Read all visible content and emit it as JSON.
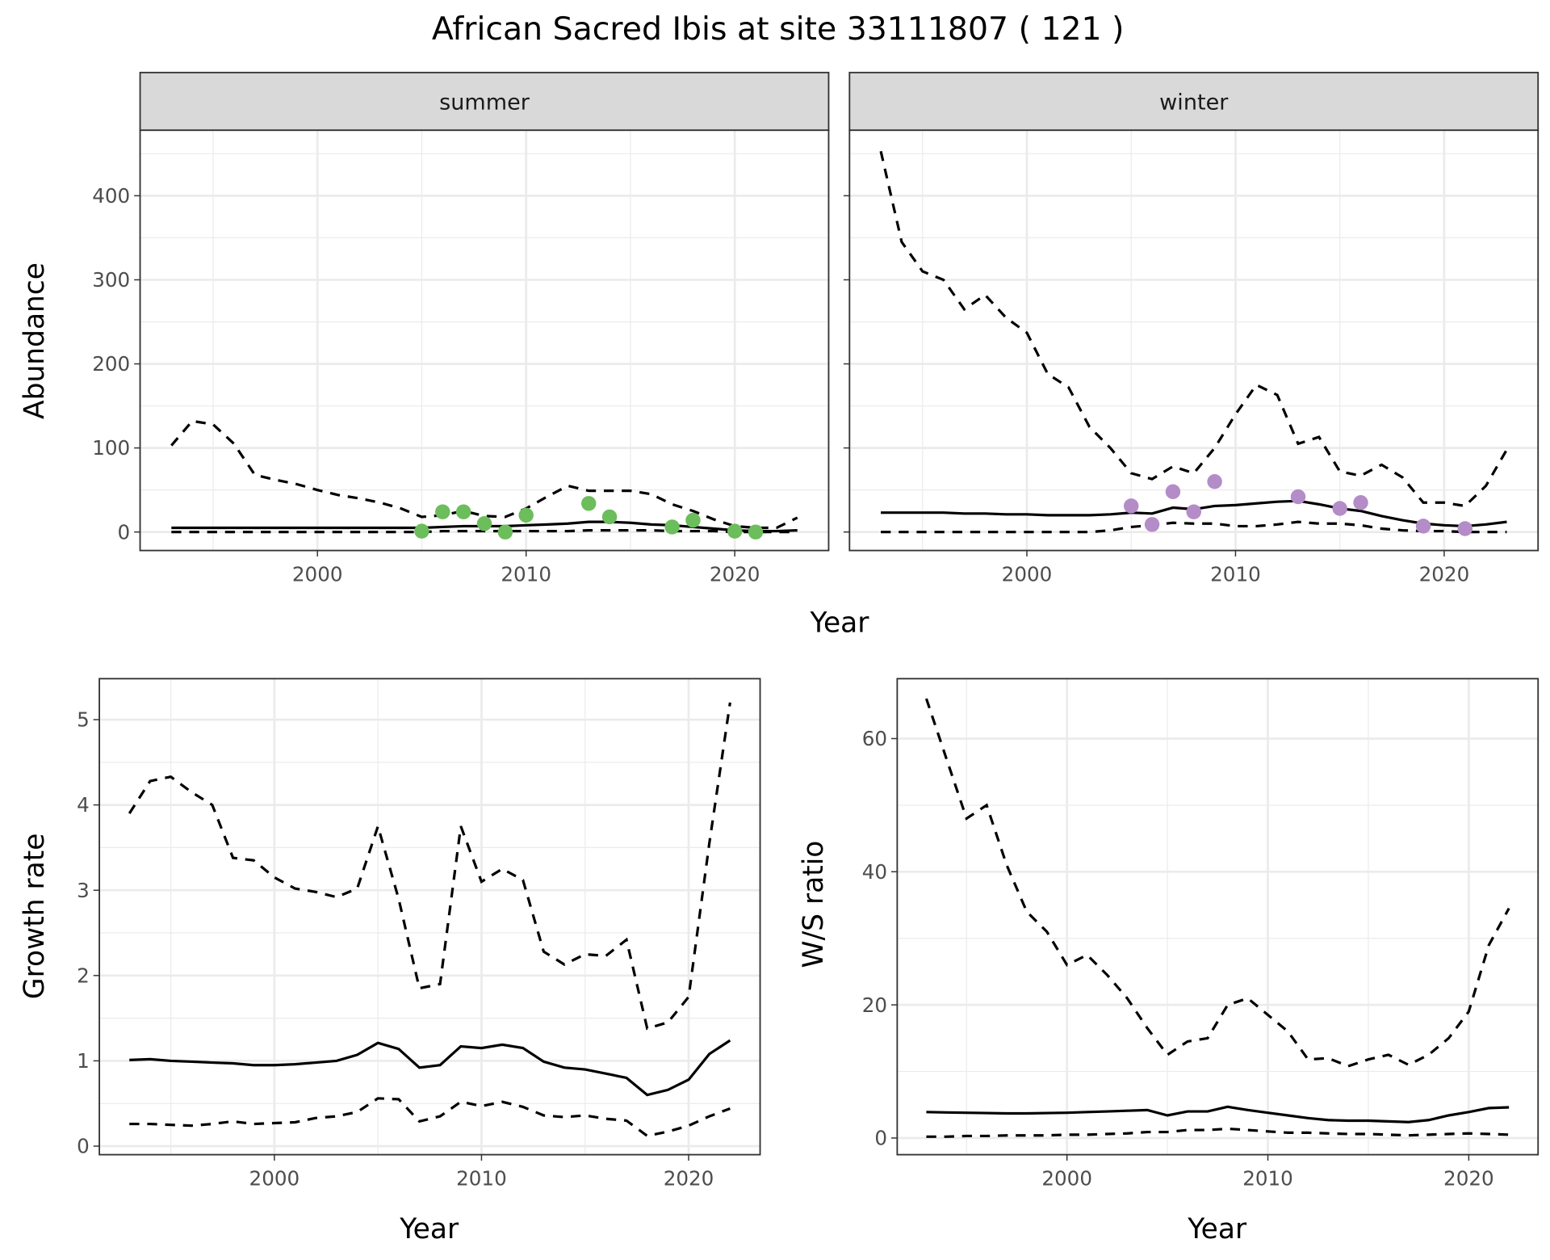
{
  "title": "African Sacred Ibis at site 33111807 ( 121 )",
  "colors": {
    "summer_points": "#6cbd5b",
    "winter_points": "#b48cc8",
    "lines": "#000000",
    "strip_bg": "#d9d9d9",
    "grid": "#ebebeb"
  },
  "shared_x_label": "Year",
  "chart_data": [
    {
      "type": "line",
      "facet": "summer",
      "strip_label": "summer",
      "xlabel": "Year",
      "ylabel": "Abundance",
      "xlim": [
        1991.5,
        2024.5
      ],
      "ylim": [
        -22,
        478
      ],
      "xticks": [
        2000,
        2010,
        2020
      ],
      "yticks": [
        0,
        100,
        200,
        300,
        400
      ],
      "grid": true,
      "x": [
        1993,
        1994,
        1995,
        1996,
        1997,
        1998,
        1999,
        2000,
        2001,
        2002,
        2003,
        2004,
        2005,
        2006,
        2007,
        2008,
        2009,
        2010,
        2011,
        2012,
        2013,
        2014,
        2015,
        2016,
        2017,
        2018,
        2019,
        2020,
        2021,
        2022,
        2023
      ],
      "series": [
        {
          "style": "dashed",
          "values": [
            103,
            132,
            128,
            105,
            68,
            62,
            57,
            50,
            44,
            40,
            35,
            28,
            18,
            20,
            25,
            19,
            18,
            28,
            42,
            55,
            49,
            49,
            49,
            45,
            33,
            25,
            15,
            7,
            5,
            5,
            17
          ]
        },
        {
          "style": "solid",
          "values": [
            5,
            5,
            5,
            5,
            5,
            5,
            5,
            5,
            5,
            5,
            5,
            5,
            5,
            6,
            7,
            7,
            7,
            8,
            9,
            10,
            12,
            12,
            11,
            9,
            8,
            6,
            4,
            2,
            1,
            1,
            2
          ]
        },
        {
          "style": "dashed",
          "values": [
            0,
            0,
            0,
            0,
            0,
            0,
            0,
            0,
            0,
            0,
            0,
            0,
            0,
            1,
            1,
            1,
            1,
            1,
            1,
            1,
            2,
            2,
            2,
            2,
            1,
            1,
            1,
            0,
            0,
            0,
            0
          ]
        }
      ],
      "points": {
        "x": [
          2005,
          2006,
          2007,
          2008,
          2009,
          2010,
          2013,
          2014,
          2017,
          2018,
          2020,
          2021
        ],
        "y": [
          1,
          24,
          24,
          10,
          0,
          20,
          34,
          18,
          6,
          14,
          1,
          0
        ]
      }
    },
    {
      "type": "line",
      "facet": "winter",
      "strip_label": "winter",
      "xlim": [
        1991.5,
        2024.5
      ],
      "ylim": [
        -22,
        478
      ],
      "xticks": [
        2000,
        2010,
        2020
      ],
      "yticks": [
        0,
        100,
        200,
        300,
        400
      ],
      "grid": true,
      "x": [
        1993,
        1994,
        1995,
        1996,
        1997,
        1998,
        1999,
        2000,
        2001,
        2002,
        2003,
        2004,
        2005,
        2006,
        2007,
        2008,
        2009,
        2010,
        2011,
        2012,
        2013,
        2014,
        2015,
        2016,
        2017,
        2018,
        2019,
        2020,
        2021,
        2022,
        2023
      ],
      "series": [
        {
          "style": "dashed",
          "values": [
            453,
            345,
            310,
            300,
            265,
            282,
            255,
            237,
            188,
            172,
            125,
            100,
            70,
            63,
            78,
            70,
            100,
            140,
            175,
            163,
            105,
            113,
            72,
            67,
            80,
            65,
            35,
            35,
            31,
            55,
            98
          ]
        },
        {
          "style": "solid",
          "values": [
            23,
            23,
            23,
            23,
            22,
            22,
            21,
            21,
            20,
            20,
            20,
            21,
            23,
            22,
            29,
            27,
            31,
            32,
            34,
            36,
            37,
            33,
            28,
            25,
            19,
            14,
            10,
            8,
            7,
            9,
            12
          ]
        },
        {
          "style": "dashed",
          "values": [
            0,
            0,
            0,
            0,
            0,
            0,
            0,
            0,
            0,
            0,
            0,
            2,
            6,
            8,
            11,
            10,
            10,
            7,
            7,
            9,
            12,
            10,
            10,
            8,
            4,
            2,
            1,
            1,
            0,
            0,
            0
          ]
        }
      ],
      "points": {
        "x": [
          2005,
          2006,
          2007,
          2008,
          2009,
          2013,
          2015,
          2016,
          2019,
          2021
        ],
        "y": [
          31,
          9,
          48,
          24,
          60,
          42,
          28,
          35,
          7,
          4
        ]
      }
    },
    {
      "type": "line",
      "xlabel": "Year",
      "ylabel": "Growth rate",
      "xlim": [
        1991.55,
        2023.45
      ],
      "ylim": [
        -0.1,
        5.48
      ],
      "xticks": [
        2000,
        2010,
        2020
      ],
      "yticks": [
        0,
        1,
        2,
        3,
        4,
        5
      ],
      "grid": true,
      "x": [
        1993,
        1994,
        1995,
        1996,
        1997,
        1998,
        1999,
        2000,
        2001,
        2002,
        2003,
        2004,
        2005,
        2006,
        2007,
        2008,
        2009,
        2010,
        2011,
        2012,
        2013,
        2014,
        2015,
        2016,
        2017,
        2018,
        2019,
        2020,
        2021,
        2022
      ],
      "series": [
        {
          "style": "dashed",
          "values": [
            3.9,
            4.28,
            4.33,
            4.15,
            4.0,
            3.38,
            3.35,
            3.15,
            3.02,
            2.98,
            2.92,
            3.02,
            3.75,
            2.9,
            1.85,
            1.9,
            3.75,
            3.1,
            3.25,
            3.12,
            2.28,
            2.13,
            2.25,
            2.23,
            2.42,
            1.38,
            1.45,
            1.75,
            3.55,
            5.2
          ]
        },
        {
          "style": "solid",
          "values": [
            1.01,
            1.02,
            1.0,
            0.99,
            0.98,
            0.97,
            0.95,
            0.95,
            0.96,
            0.98,
            1.0,
            1.07,
            1.21,
            1.14,
            0.92,
            0.95,
            1.17,
            1.15,
            1.19,
            1.15,
            0.99,
            0.92,
            0.9,
            0.85,
            0.8,
            0.6,
            0.66,
            0.78,
            1.08,
            1.24
          ]
        },
        {
          "style": "dashed",
          "values": [
            0.26,
            0.26,
            0.25,
            0.24,
            0.26,
            0.29,
            0.26,
            0.27,
            0.28,
            0.33,
            0.35,
            0.4,
            0.56,
            0.55,
            0.29,
            0.35,
            0.52,
            0.47,
            0.52,
            0.46,
            0.36,
            0.34,
            0.36,
            0.32,
            0.3,
            0.12,
            0.17,
            0.24,
            0.35,
            0.44
          ]
        }
      ]
    },
    {
      "type": "line",
      "xlabel": "Year",
      "ylabel": "W/S ratio",
      "xlim": [
        1991.55,
        2023.45
      ],
      "ylim": [
        -2.5,
        69
      ],
      "xticks": [
        2000,
        2010,
        2020
      ],
      "yticks": [
        0,
        20,
        40,
        60
      ],
      "grid": true,
      "x": [
        1993,
        1994,
        1995,
        1996,
        1997,
        1998,
        1999,
        2000,
        2001,
        2002,
        2003,
        2004,
        2005,
        2006,
        2007,
        2008,
        2009,
        2010,
        2011,
        2012,
        2013,
        2014,
        2015,
        2016,
        2017,
        2018,
        2019,
        2020,
        2021,
        2022
      ],
      "series": [
        {
          "style": "dashed",
          "values": [
            66,
            57,
            48,
            50,
            41,
            34,
            31,
            26,
            27.5,
            24.5,
            21,
            16.5,
            12.5,
            14.5,
            15,
            20,
            21,
            18.5,
            16,
            11.8,
            12,
            10.8,
            11.8,
            12.5,
            11,
            12.5,
            15,
            19,
            29,
            34.5
          ]
        },
        {
          "style": "solid",
          "values": [
            3.9,
            3.85,
            3.8,
            3.75,
            3.7,
            3.7,
            3.75,
            3.8,
            3.9,
            4.0,
            4.1,
            4.2,
            3.4,
            4.0,
            4.0,
            4.7,
            4.2,
            3.8,
            3.4,
            3.0,
            2.7,
            2.6,
            2.6,
            2.5,
            2.4,
            2.7,
            3.4,
            3.9,
            4.5,
            4.6
          ]
        },
        {
          "style": "dashed",
          "values": [
            0.2,
            0.2,
            0.3,
            0.3,
            0.4,
            0.4,
            0.4,
            0.5,
            0.5,
            0.6,
            0.7,
            0.9,
            0.9,
            1.2,
            1.2,
            1.4,
            1.2,
            1.0,
            0.8,
            0.8,
            0.7,
            0.6,
            0.6,
            0.5,
            0.4,
            0.5,
            0.6,
            0.7,
            0.6,
            0.5
          ]
        }
      ]
    }
  ]
}
